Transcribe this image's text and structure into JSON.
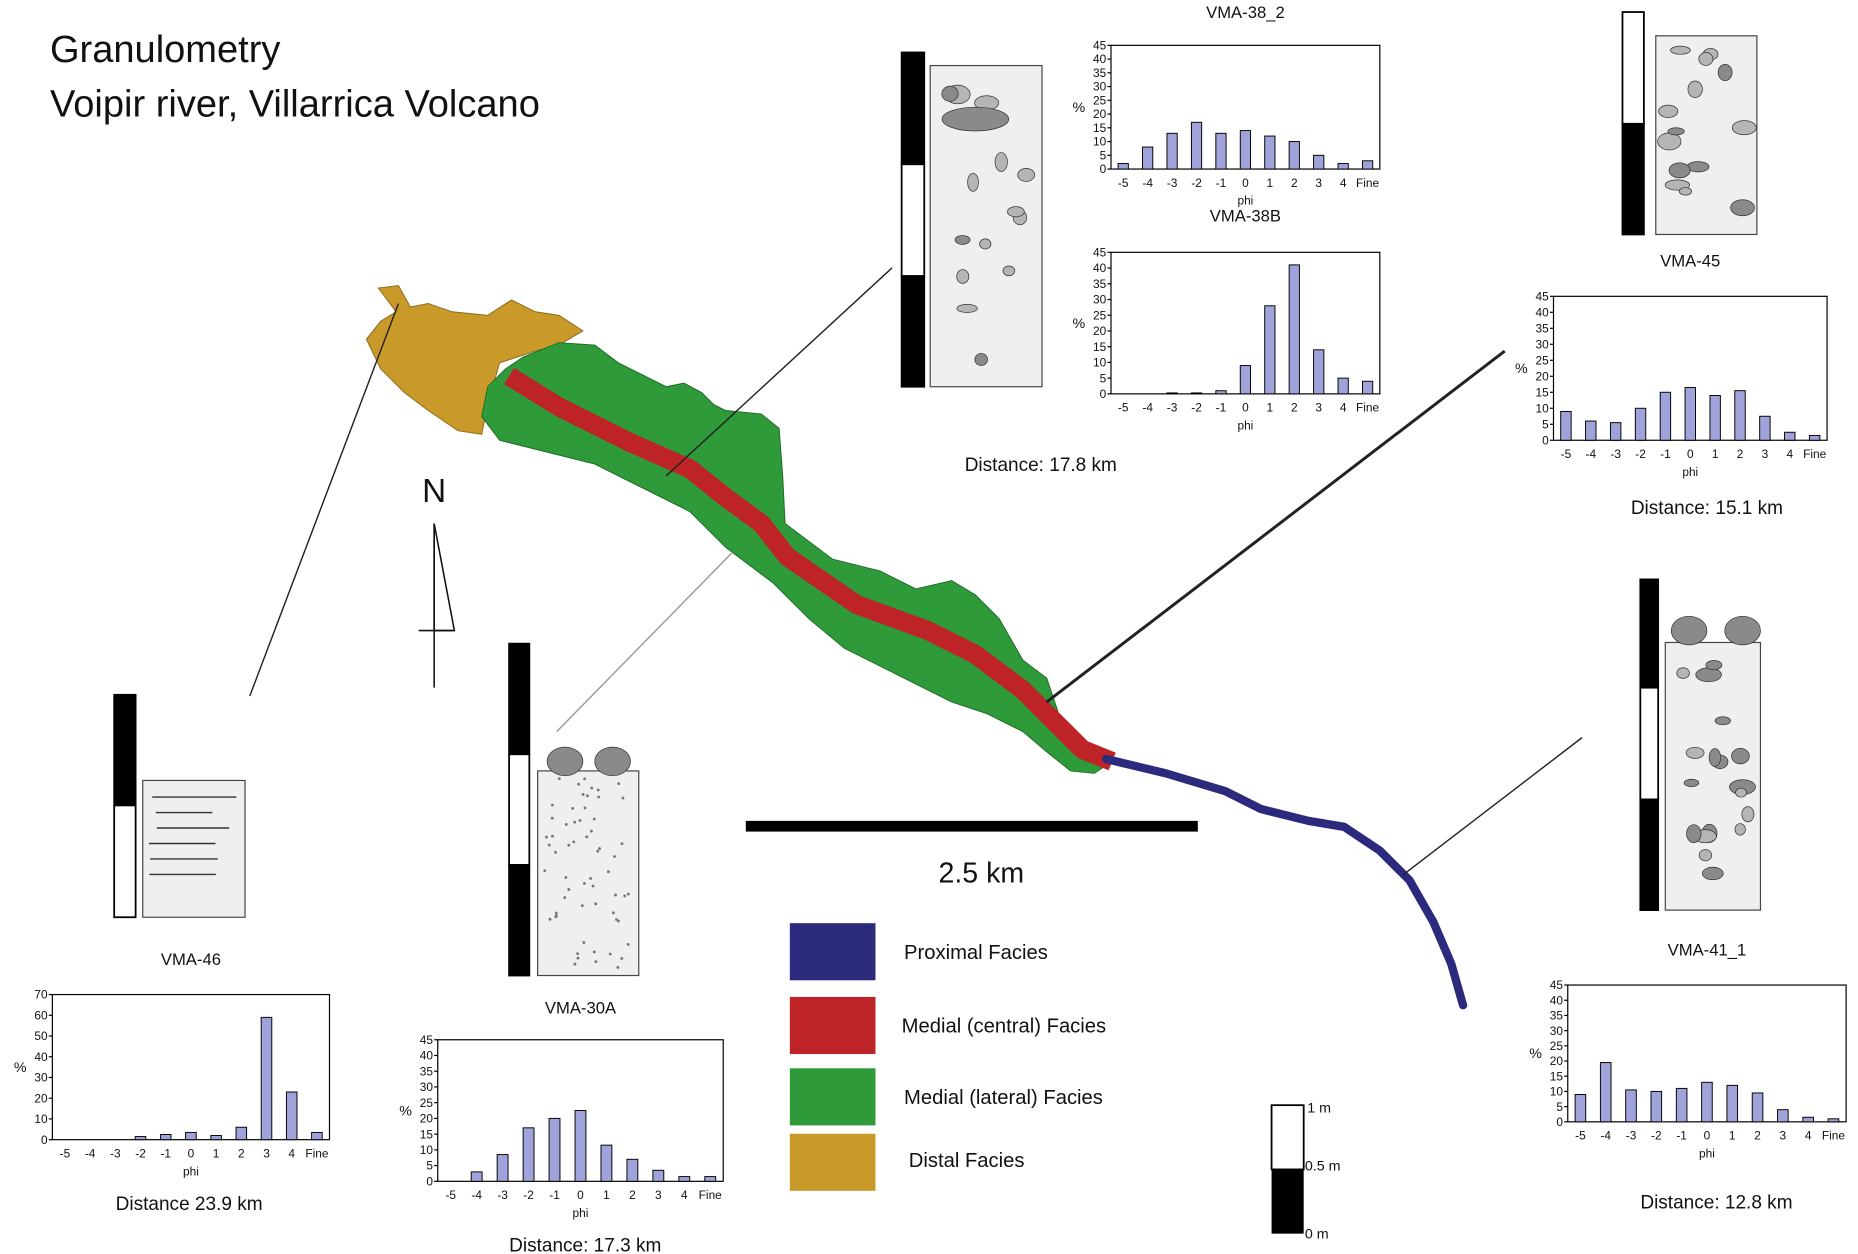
{
  "figure": {
    "title": [
      "Granulometry",
      "Voipir river,   Villarrica Volcano"
    ],
    "north": "N",
    "scale_bar": "2.5 km",
    "legend": [
      {
        "label": "Proximal Facies",
        "color": "#2b2a7c"
      },
      {
        "label": "Medial (central) Facies",
        "color": "#be2327"
      },
      {
        "label": "Medial (lateral) Facies",
        "color": "#2f9a3a"
      },
      {
        "label": "Distal Facies",
        "color": "#c99a2a"
      }
    ],
    "column_scale": [
      "1 m",
      "0.5 m",
      "0 m"
    ]
  },
  "chart_data": [
    {
      "type": "bar",
      "title": "VMA-38_2",
      "x_label": "phi",
      "y_label": "%",
      "color": "#9fa3d9",
      "categories": [
        "-5",
        "-4",
        "-3",
        "-2",
        "-1",
        "0",
        "1",
        "2",
        "3",
        "4",
        "Fine"
      ],
      "values": [
        2,
        8,
        13,
        17,
        13,
        14,
        12,
        10,
        5,
        2,
        3
      ],
      "ylim": [
        0,
        45
      ],
      "yticks": [
        0,
        5,
        10,
        15,
        20,
        25,
        30,
        35,
        40,
        45
      ]
    },
    {
      "type": "bar",
      "title": "VMA-38B",
      "x_label": "phi",
      "y_label": "%",
      "color": "#9fa3d9",
      "categories": [
        "-5",
        "-4",
        "-3",
        "-2",
        "-1",
        "0",
        "1",
        "2",
        "3",
        "4",
        "Fine"
      ],
      "values": [
        0,
        0,
        0.3,
        0.3,
        1,
        9,
        28,
        41,
        14,
        5,
        4
      ],
      "ylim": [
        0,
        45
      ],
      "yticks": [
        0,
        5,
        10,
        15,
        20,
        25,
        30,
        35,
        40,
        45
      ],
      "distance": "Distance: 17.8 km"
    },
    {
      "type": "bar",
      "title": "VMA-45",
      "x_label": "phi",
      "y_label": "%",
      "color": "#9fa3d9",
      "categories": [
        "-5",
        "-4",
        "-3",
        "-2",
        "-1",
        "0",
        "1",
        "2",
        "3",
        "4",
        "Fine"
      ],
      "values": [
        9,
        6,
        5.5,
        10,
        15,
        16.5,
        14,
        15.5,
        7.5,
        2.5,
        1.5
      ],
      "ylim": [
        0,
        45
      ],
      "yticks": [
        0,
        5,
        10,
        15,
        20,
        25,
        30,
        35,
        40,
        45
      ],
      "distance": "Distance: 15.1 km"
    },
    {
      "type": "bar",
      "title": "VMA-46",
      "x_label": "phi",
      "y_label": "%",
      "color": "#9fa3d9",
      "categories": [
        "-5",
        "-4",
        "-3",
        "-2",
        "-1",
        "0",
        "1",
        "2",
        "3",
        "4",
        "Fine"
      ],
      "values": [
        0,
        0,
        0,
        1.5,
        2.5,
        3.5,
        2,
        6,
        59,
        23,
        3.5
      ],
      "ylim": [
        0,
        70
      ],
      "yticks": [
        0,
        10,
        20,
        30,
        40,
        50,
        60,
        70
      ],
      "distance": "Distance 23.9 km"
    },
    {
      "type": "bar",
      "title": "VMA-30A",
      "x_label": "phi",
      "y_label": "%",
      "color": "#9fa3d9",
      "categories": [
        "-5",
        "-4",
        "-3",
        "-2",
        "-1",
        "0",
        "1",
        "2",
        "3",
        "4",
        "Fine"
      ],
      "values": [
        0,
        3,
        8.5,
        17,
        20,
        22.5,
        11.5,
        7,
        3.5,
        1.5,
        1.5
      ],
      "ylim": [
        0,
        45
      ],
      "yticks": [
        0,
        5,
        10,
        15,
        20,
        25,
        30,
        35,
        40,
        45
      ],
      "distance": "Distance: 17.3 km"
    },
    {
      "type": "bar",
      "title": "VMA-41_1",
      "x_label": "phi",
      "y_label": "%",
      "color": "#9fa3d9",
      "categories": [
        "-5",
        "-4",
        "-3",
        "-2",
        "-1",
        "0",
        "1",
        "2",
        "3",
        "4",
        "Fine"
      ],
      "values": [
        9,
        19.5,
        10.5,
        10,
        11,
        13,
        12,
        9.5,
        4,
        1.5,
        1
      ],
      "ylim": [
        0,
        45
      ],
      "yticks": [
        0,
        5,
        10,
        15,
        20,
        25,
        30,
        35,
        40,
        45
      ],
      "distance": "Distance: 12.8 km"
    }
  ]
}
